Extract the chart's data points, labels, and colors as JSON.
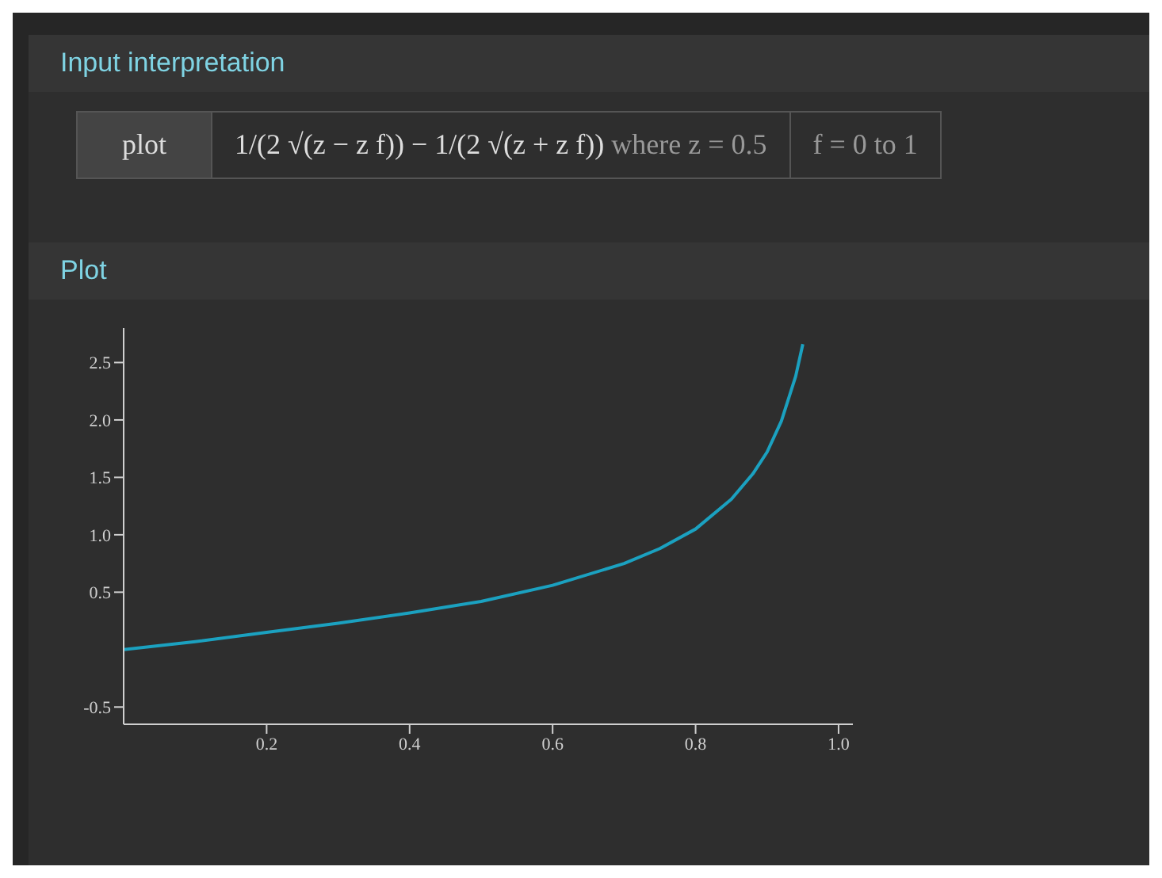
{
  "chart_data": {
    "type": "line",
    "title": "Plot",
    "annotations": [
      "Input interpretation",
      "plot",
      "1/(2 √(z − z f)) − 1/(2 √(z + z f))",
      "where z = 0.5",
      "f = 0 to 1"
    ],
    "x": [
      0,
      0.1,
      0.2,
      0.3,
      0.4,
      0.5,
      0.6,
      0.7,
      0.75,
      0.8,
      0.85,
      0.88,
      0.9,
      0.92,
      0.94,
      0.95
    ],
    "series": [
      {
        "color": "#1ba1c0",
        "values": [
          0,
          0.07,
          0.15,
          0.23,
          0.32,
          0.42,
          0.56,
          0.75,
          0.88,
          1.05,
          1.31,
          1.53,
          1.72,
          1.99,
          2.38,
          2.66
        ]
      }
    ],
    "xlim": [
      0,
      1.02
    ],
    "ylim": [
      -0.65,
      2.8
    ],
    "xticks": [
      0.2,
      0.4,
      0.6,
      {
        "value": 0.8,
        "label": "0.8"
      },
      {
        "value": 1.0,
        "label": "1.0"
      }
    ],
    "yticks": [
      -0.5,
      0.5,
      {
        "value": 1.0,
        "label": "1.0"
      },
      1.5,
      {
        "value": 2.0,
        "label": "2.0"
      },
      2.5
    ],
    "grid": false,
    "legend": false
  }
}
